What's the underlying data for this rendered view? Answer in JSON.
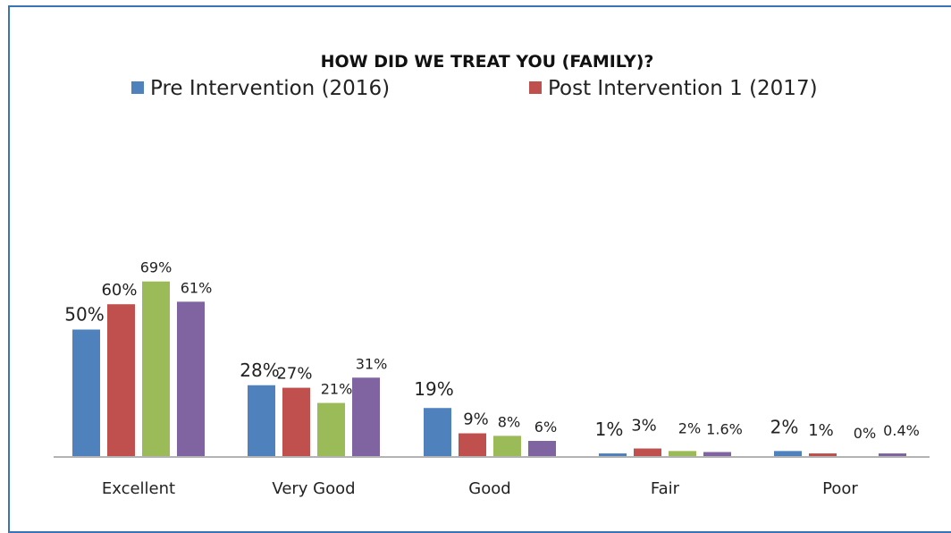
{
  "chart_data": {
    "type": "bar",
    "title": "HOW DID WE TREAT YOU (FAMILY)?",
    "categories": [
      "Excellent",
      "Very Good",
      "Good",
      "Fair",
      "Poor"
    ],
    "series": [
      {
        "name": "Pre Intervention (2016)",
        "values": [
          50,
          28,
          19,
          1,
          2
        ],
        "labels": [
          "50%",
          "28%",
          "19%",
          "1%",
          "2%"
        ],
        "color": "#4f81bd"
      },
      {
        "name": "Post Intervention 1 (2017)",
        "values": [
          60,
          27,
          9,
          3,
          1
        ],
        "labels": [
          "60%",
          "27%",
          "9%",
          "3%",
          "1%"
        ],
        "color": "#c0504d"
      },
      {
        "values": [
          69,
          21,
          8,
          2,
          0
        ],
        "labels": [
          "69%",
          "21%",
          "8%",
          "2%",
          "0%"
        ],
        "color": "#9bbb59"
      },
      {
        "values": [
          61,
          31,
          6,
          1.6,
          0.4
        ],
        "labels": [
          "61%",
          "31%",
          "6%",
          "1.6%",
          "0.4%"
        ],
        "color": "#8064a2"
      }
    ],
    "ylim": [
      0,
      100
    ],
    "grid": false,
    "legend_position": "top",
    "xlabel": "",
    "ylabel": ""
  }
}
